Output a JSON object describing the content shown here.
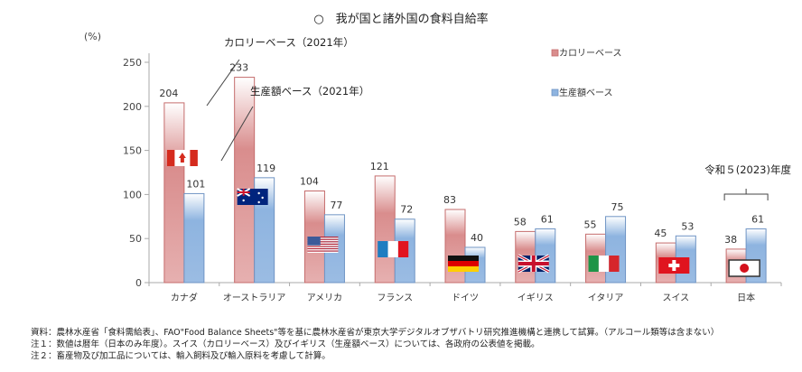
{
  "chart_data": {
    "type": "bar",
    "title": "○　我が国と諸外国の食料自給率",
    "ylabel": "(%)",
    "xlabel": "",
    "ylim": [
      0,
      250
    ],
    "yticks": [
      0,
      50,
      100,
      150,
      200,
      250
    ],
    "grid": false,
    "legend_position": "top-right",
    "categories": [
      "カナダ",
      "オーストラリア",
      "アメリカ",
      "フランス",
      "ドイツ",
      "イギリス",
      "イタリア",
      "スイス",
      "日本"
    ],
    "flags": [
      "canada-flag",
      "australia-flag",
      "usa-flag",
      "france-flag",
      "germany-flag",
      "uk-flag",
      "italy-flag",
      "switzerland-flag",
      "japan-flag"
    ],
    "series": [
      {
        "name": "カロリーベース",
        "color": "#d98d8d",
        "values": [
          204,
          233,
          104,
          121,
          83,
          58,
          55,
          45,
          38
        ]
      },
      {
        "name": "生産額ベース",
        "color": "#8eb4e0",
        "values": [
          101,
          119,
          77,
          72,
          40,
          61,
          75,
          53,
          61
        ]
      }
    ],
    "annotations": [
      {
        "text": "カロリーベース（2021年）",
        "target": "オーストラリア calorie bar"
      },
      {
        "text": "生産額ベース（2021年）",
        "target": "オーストラリア production bar"
      },
      {
        "text": "令和５(2023)年度",
        "target": "日本"
      }
    ]
  },
  "notes": [
    "資料：農林水産省「食料需給表」、FAO\"Food Balance Sheets\"等を基に農林水産省が東京大学デジタルオブザバトリ研究推進機構と連携して試算。（アルコール類等は含まない）",
    "注１：数値は暦年（日本のみ年度）。スイス（カロリーベース）及びイギリス（生産額ベース）については、各政府の公表値を掲載。",
    "注２：畜産物及び加工品については、輸入飼料及び輸入原料を考慮して計算。"
  ]
}
